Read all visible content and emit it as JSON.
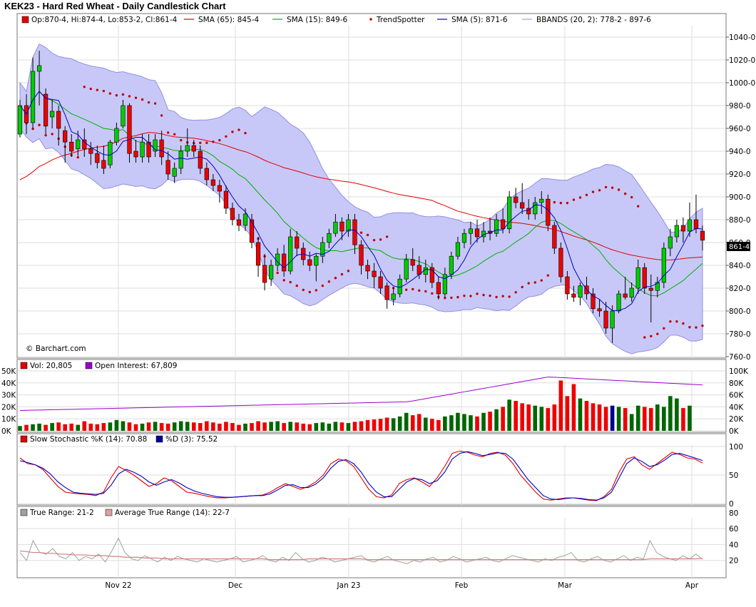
{
  "title": "KEK23 - Hard Red Wheat - Daily Candlestick Chart",
  "price_panel": {
    "ohlc_label": "Op:870-4, Hi:874-4, Lo:853-2, Cl:861-4",
    "legend": [
      {
        "label": "SMA (65): 845-4",
        "color": "#e00000",
        "kind": "line"
      },
      {
        "label": "SMA (15): 849-6",
        "color": "#00b000",
        "kind": "line"
      },
      {
        "label": "TrendSpotter",
        "color": "#c00000",
        "kind": "dot"
      },
      {
        "label": "SMA (5): 871-6",
        "color": "#0000c0",
        "kind": "line"
      },
      {
        "label": "BBANDS (20, 2): 778-2 - 897-6",
        "color": "#b8b8f0",
        "kind": "band"
      }
    ],
    "last_price_label": "861-4",
    "watermark": "© Barchart.com",
    "y_ticks": [
      "760-0",
      "780-0",
      "800-0",
      "820-0",
      "840-0",
      "860-0",
      "880-0",
      "900-0",
      "920-0",
      "940-0",
      "960-0",
      "980-0",
      "1000-0",
      "1020-0",
      "1040-0"
    ]
  },
  "volume_panel": {
    "vol_label": "Vol: 20,805",
    "oi_label": "Open Interest: 67,809",
    "left_ticks": [
      "0K",
      "10K",
      "20K",
      "30K",
      "40K",
      "50K"
    ],
    "right_ticks": [
      "0K",
      "20K",
      "40K",
      "60K",
      "80K",
      "100K"
    ]
  },
  "stoch_panel": {
    "k_label": "Slow Stochastic %K (14): 70.88",
    "d_label": "%D (3): 75.52",
    "ticks": [
      "0",
      "50",
      "100"
    ]
  },
  "atr_panel": {
    "tr_label": "True Range: 21-2",
    "atr_label": "Average True Range (14): 22-7",
    "ticks": [
      "20",
      "40",
      "60",
      "80"
    ]
  },
  "x_labels": [
    "Nov 22",
    "Dec",
    "Jan 23",
    "Feb",
    "Mar",
    "Apr"
  ],
  "colors": {
    "up": "#00cc00",
    "down": "#ee0000",
    "band": "#c8c8f8",
    "band_edge": "#9090e0",
    "grid": "#dddddd",
    "stoch_k": "#e00000",
    "stoch_d": "#0000c0",
    "oi": "#9900cc",
    "vol_up": "#006600",
    "vol_down": "#ee0000"
  },
  "chart_data": [
    {
      "type": "candlestick",
      "name": "KEK23 price",
      "x": [
        "Nov 22",
        "Dec",
        "Jan 23",
        "Feb",
        "Mar",
        "Apr"
      ],
      "ylim": [
        760,
        1050
      ],
      "ohlc": [
        [
          955,
          985,
          952,
          980
        ],
        [
          980,
          990,
          955,
          965
        ],
        [
          965,
          1022,
          960,
          1010
        ],
        [
          1010,
          1028,
          980,
          1015
        ],
        [
          990,
          995,
          955,
          962
        ],
        [
          970,
          985,
          960,
          975
        ],
        [
          975,
          980,
          945,
          960
        ],
        [
          958,
          962,
          930,
          948
        ],
        [
          948,
          955,
          935,
          940
        ],
        [
          942,
          958,
          936,
          950
        ],
        [
          950,
          960,
          935,
          942
        ],
        [
          942,
          948,
          928,
          938
        ],
        [
          938,
          945,
          925,
          930
        ],
        [
          932,
          945,
          920,
          925
        ],
        [
          928,
          950,
          925,
          948
        ],
        [
          948,
          965,
          945,
          960
        ],
        [
          962,
          985,
          960,
          980
        ],
        [
          980,
          982,
          930,
          938
        ],
        [
          940,
          950,
          930,
          935
        ],
        [
          935,
          955,
          930,
          948
        ],
        [
          948,
          955,
          930,
          935
        ],
        [
          940,
          955,
          935,
          950
        ],
        [
          950,
          958,
          928,
          935
        ],
        [
          932,
          940,
          915,
          920
        ],
        [
          918,
          930,
          912,
          925
        ],
        [
          925,
          945,
          920,
          940
        ],
        [
          940,
          960,
          935,
          945
        ],
        [
          945,
          950,
          935,
          940
        ],
        [
          940,
          945,
          920,
          925
        ],
        [
          925,
          930,
          910,
          915
        ],
        [
          915,
          920,
          905,
          910
        ],
        [
          910,
          915,
          895,
          905
        ],
        [
          905,
          910,
          885,
          890
        ],
        [
          890,
          895,
          875,
          880
        ],
        [
          880,
          885,
          870,
          875
        ],
        [
          875,
          890,
          870,
          885
        ],
        [
          880,
          885,
          855,
          860
        ],
        [
          860,
          865,
          830,
          840
        ],
        [
          840,
          850,
          818,
          825
        ],
        [
          828,
          845,
          822,
          840
        ],
        [
          840,
          855,
          835,
          850
        ],
        [
          850,
          858,
          830,
          835
        ],
        [
          835,
          872,
          832,
          865
        ],
        [
          865,
          870,
          848,
          855
        ],
        [
          855,
          860,
          840,
          845
        ],
        [
          845,
          852,
          835,
          840
        ],
        [
          840,
          850,
          826,
          848
        ],
        [
          848,
          865,
          842,
          860
        ],
        [
          860,
          872,
          855,
          868
        ],
        [
          868,
          885,
          865,
          878
        ],
        [
          878,
          882,
          862,
          870
        ],
        [
          870,
          885,
          865,
          880
        ],
        [
          880,
          885,
          850,
          858
        ],
        [
          858,
          862,
          832,
          840
        ],
        [
          840,
          845,
          828,
          835
        ],
        [
          835,
          842,
          820,
          830
        ],
        [
          830,
          835,
          815,
          820
        ],
        [
          822,
          825,
          802,
          810
        ],
        [
          810,
          820,
          805,
          815
        ],
        [
          815,
          832,
          812,
          828
        ],
        [
          828,
          850,
          825,
          845
        ],
        [
          845,
          855,
          835,
          840
        ],
        [
          840,
          848,
          828,
          832
        ],
        [
          832,
          845,
          825,
          838
        ],
        [
          838,
          842,
          820,
          825
        ],
        [
          825,
          830,
          810,
          815
        ],
        [
          815,
          838,
          812,
          832
        ],
        [
          832,
          852,
          828,
          848
        ],
        [
          848,
          865,
          845,
          860
        ],
        [
          860,
          872,
          855,
          868
        ],
        [
          868,
          878,
          858,
          872
        ],
        [
          872,
          880,
          860,
          865
        ],
        [
          865,
          878,
          860,
          870
        ],
        [
          870,
          882,
          862,
          868
        ],
        [
          868,
          885,
          865,
          880
        ],
        [
          880,
          890,
          868,
          872
        ],
        [
          872,
          905,
          868,
          900
        ],
        [
          900,
          908,
          890,
          895
        ],
        [
          895,
          912,
          885,
          890
        ],
        [
          890,
          898,
          880,
          885
        ],
        [
          885,
          900,
          880,
          895
        ],
        [
          895,
          905,
          885,
          898
        ],
        [
          898,
          902,
          870,
          875
        ],
        [
          875,
          878,
          850,
          855
        ],
        [
          855,
          860,
          825,
          830
        ],
        [
          830,
          835,
          810,
          815
        ],
        [
          815,
          822,
          808,
          812
        ],
        [
          812,
          825,
          805,
          822
        ],
        [
          822,
          830,
          810,
          815
        ],
        [
          815,
          820,
          798,
          802
        ],
        [
          802,
          810,
          795,
          800
        ],
        [
          800,
          808,
          780,
          785
        ],
        [
          785,
          805,
          772,
          800
        ],
        [
          800,
          818,
          798,
          815
        ],
        [
          815,
          830,
          810,
          812
        ],
        [
          812,
          825,
          808,
          820
        ],
        [
          820,
          845,
          815,
          838
        ],
        [
          838,
          842,
          815,
          820
        ],
        [
          820,
          832,
          790,
          818
        ],
        [
          818,
          830,
          812,
          825
        ],
        [
          825,
          860,
          820,
          855
        ],
        [
          855,
          872,
          848,
          865
        ],
        [
          865,
          880,
          860,
          875
        ],
        [
          875,
          882,
          860,
          870
        ],
        [
          870,
          895,
          865,
          880
        ],
        [
          880,
          902,
          868,
          872
        ],
        [
          870,
          875,
          853,
          862
        ]
      ]
    },
    {
      "type": "bar",
      "name": "Volume",
      "ylim": [
        0,
        50000
      ],
      "values": [
        4000,
        5000,
        5500,
        6000,
        5000,
        6500,
        7000,
        5500,
        6000,
        5000,
        8000,
        6000,
        5500,
        6500,
        7000,
        9000,
        8000,
        7000,
        5500,
        6000,
        7000,
        7500,
        6500,
        6000,
        7000,
        8000,
        7500,
        7000,
        6500,
        8000,
        7000,
        6000,
        7500,
        6500,
        5000,
        6000,
        6500,
        8000,
        7000,
        7500,
        8000,
        6500,
        7500,
        7000,
        6000,
        5500,
        6500,
        7000,
        6000,
        7500,
        7000,
        6500,
        7500,
        8000,
        9000,
        9500,
        10000,
        11000,
        10500,
        12000,
        15000,
        13000,
        14000,
        11000,
        10000,
        9000,
        12000,
        13000,
        15000,
        14000,
        13000,
        12000,
        15000,
        16000,
        18000,
        20000,
        26000,
        25000,
        23000,
        22000,
        21000,
        20000,
        19000,
        22000,
        42000,
        29000,
        39000,
        27000,
        25000,
        23000,
        22000,
        20000,
        21000,
        20000,
        19000,
        14000,
        21000,
        20000,
        19000,
        22000,
        20000,
        29000,
        27000,
        19000,
        21000
      ]
    },
    {
      "type": "line",
      "name": "Slow Stochastic %K (14)",
      "ylim": [
        0,
        100
      ],
      "values": [
        80,
        70,
        68,
        60,
        45,
        30,
        20,
        18,
        17,
        16,
        14,
        20,
        45,
        65,
        58,
        50,
        40,
        30,
        35,
        45,
        40,
        30,
        20,
        18,
        15,
        12,
        10,
        10,
        11,
        12,
        13,
        14,
        15,
        20,
        28,
        35,
        30,
        25,
        30,
        38,
        50,
        70,
        78,
        75,
        65,
        45,
        25,
        12,
        10,
        15,
        35,
        42,
        45,
        38,
        30,
        45,
        65,
        88,
        92,
        90,
        85,
        82,
        88,
        90,
        85,
        70,
        50,
        35,
        20,
        8,
        6,
        8,
        10,
        10,
        8,
        6,
        5,
        12,
        25,
        55,
        78,
        82,
        68,
        60,
        70,
        80,
        90,
        86,
        80,
        78,
        71
      ]
    },
    {
      "type": "line",
      "name": "%D (3)",
      "ylim": [
        0,
        100
      ],
      "values": [
        75,
        72,
        68,
        62,
        52,
        38,
        28,
        20,
        18,
        17,
        16,
        18,
        32,
        52,
        60,
        55,
        48,
        38,
        32,
        38,
        42,
        36,
        28,
        22,
        18,
        15,
        12,
        11,
        11,
        12,
        13,
        14,
        14,
        17,
        24,
        32,
        33,
        28,
        28,
        34,
        45,
        62,
        74,
        77,
        70,
        55,
        35,
        20,
        12,
        12,
        25,
        38,
        44,
        42,
        35,
        40,
        55,
        78,
        88,
        91,
        88,
        84,
        86,
        89,
        88,
        78,
        60,
        42,
        28,
        14,
        8,
        7,
        9,
        10,
        9,
        7,
        6,
        10,
        20,
        45,
        70,
        80,
        74,
        65,
        68,
        76,
        86,
        88,
        84,
        80,
        75.5
      ]
    },
    {
      "type": "line",
      "name": "True Range",
      "ylim": [
        0,
        70
      ],
      "values": [
        30,
        20,
        45,
        30,
        28,
        35,
        25,
        22,
        30,
        20,
        25,
        22,
        28,
        18,
        32,
        48,
        30,
        22,
        20,
        26,
        22,
        18,
        24,
        20,
        25,
        22,
        20,
        18,
        22,
        20,
        18,
        20,
        22,
        25,
        18,
        20,
        22,
        26,
        20,
        18,
        24,
        20,
        30,
        22,
        18,
        20,
        24,
        22,
        18,
        20,
        22,
        24,
        26,
        20,
        18,
        22,
        25,
        20,
        18,
        16,
        20,
        18,
        22,
        24,
        18,
        20,
        25,
        22,
        18,
        20,
        22,
        24,
        20,
        18,
        22,
        26,
        24,
        22,
        20,
        18,
        22,
        20,
        24,
        26,
        30,
        20,
        18,
        22,
        25,
        20,
        18,
        22,
        26,
        20,
        24,
        22,
        45,
        30,
        25,
        22,
        20,
        26,
        22,
        28,
        21.2
      ]
    },
    {
      "type": "line",
      "name": "Average True Range (14)",
      "ylim": [
        0,
        70
      ],
      "values": [
        32,
        31,
        30,
        30,
        29,
        29,
        28,
        28,
        27,
        27,
        27,
        26,
        26,
        26,
        25,
        25,
        24,
        24,
        24,
        23,
        23,
        23,
        22,
        22,
        22,
        22,
        22,
        22,
        22,
        22,
        22,
        22,
        22,
        22,
        22,
        22,
        22,
        22,
        21,
        21,
        21,
        21,
        21,
        21,
        22,
        22,
        22,
        22,
        22,
        22,
        22,
        22,
        22,
        21,
        21,
        21,
        21,
        21,
        21,
        21,
        21,
        21,
        21,
        21,
        21,
        21,
        21,
        21,
        21,
        21,
        21,
        21,
        21,
        21,
        21,
        21,
        21,
        21,
        21,
        21,
        21,
        21,
        21,
        21,
        21,
        21,
        21,
        21,
        21,
        21,
        21,
        21,
        21,
        21,
        21,
        21,
        22,
        22,
        22,
        22,
        22,
        22,
        22,
        22,
        22.7
      ]
    }
  ]
}
